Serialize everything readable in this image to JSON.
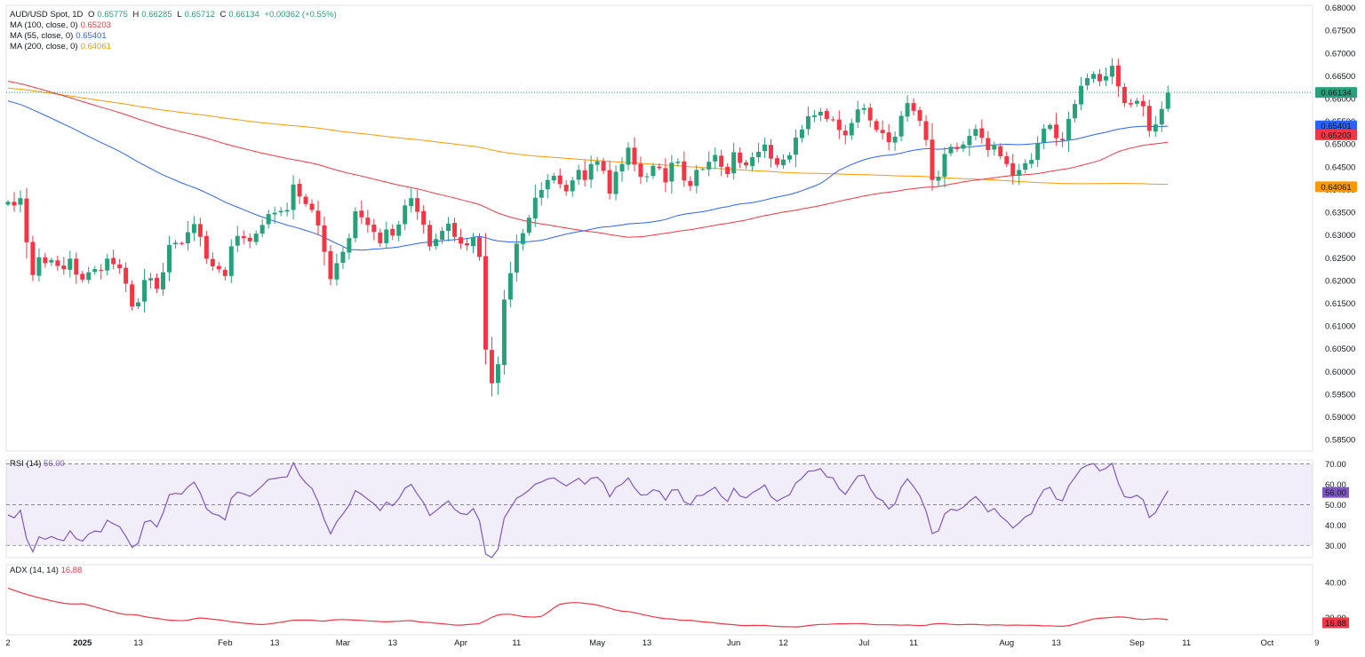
{
  "header": {
    "symbol": "AUD/USD Spot, 1D",
    "o_label": "O",
    "o_val": "0.65775",
    "h_label": "H",
    "h_val": "0.66285",
    "l_label": "L",
    "l_val": "0.65712",
    "c_label": "C",
    "c_val": "0.66134",
    "change": "+0.00362 (+0.55%)",
    "ma100_label": "MA (100, close, 0)",
    "ma100_val": "0.65203",
    "ma55_label": "MA (55, close, 0)",
    "ma55_val": "0.65401",
    "ma200_label": "MA (200, close, 0)",
    "ma200_val": "0.64061"
  },
  "rsi_panel": {
    "label": "RSI (14)",
    "value": "56.00"
  },
  "adx_panel": {
    "label": "ADX (14, 14)",
    "value": "16.88"
  },
  "colors": {
    "up": "#26a17a",
    "down": "#f23645",
    "ma55": "#2962ff",
    "ma100": "#f23645",
    "ma200": "#ff9800",
    "rsi": "#7e57c2",
    "adx": "#f23645",
    "value_green": "#26a17a"
  },
  "chart_data": [
    {
      "type": "candlestick",
      "title": "AUD/USD Spot, 1D",
      "x_ticks": [
        "2",
        "2025",
        "13",
        "Feb",
        "13",
        "Mar",
        "13",
        "Apr",
        "11",
        "May",
        "13",
        "Jun",
        "12",
        "Jul",
        "11",
        "Aug",
        "13",
        "Sep",
        "11",
        "Oct",
        "9"
      ],
      "y_ticks": [
        "0.68000",
        "0.67500",
        "0.67000",
        "0.66500",
        "0.66000",
        "0.65500",
        "0.65000",
        "0.64500",
        "0.64000",
        "0.63500",
        "0.63000",
        "0.62500",
        "0.62000",
        "0.61500",
        "0.61000",
        "0.60500",
        "0.60000",
        "0.59500",
        "0.59000",
        "0.58500"
      ],
      "ylim": [
        0.5825,
        0.6805
      ],
      "last_price": "0.66134",
      "ma_labels": {
        "ma55": "0.65401",
        "ma100": "0.65203",
        "ma200": "0.64061"
      },
      "closes": [
        0.6373,
        0.6365,
        0.6381,
        0.6284,
        0.6212,
        0.6251,
        0.6238,
        0.6245,
        0.6232,
        0.6225,
        0.6248,
        0.6213,
        0.6202,
        0.6218,
        0.6225,
        0.6222,
        0.6248,
        0.6236,
        0.6227,
        0.6193,
        0.6143,
        0.6152,
        0.6201,
        0.6205,
        0.6182,
        0.6218,
        0.6278,
        0.6283,
        0.6281,
        0.6306,
        0.6324,
        0.6296,
        0.6248,
        0.6231,
        0.6225,
        0.621,
        0.6275,
        0.6298,
        0.6293,
        0.6286,
        0.6303,
        0.6322,
        0.6346,
        0.6349,
        0.6353,
        0.6355,
        0.6411,
        0.6385,
        0.6368,
        0.6355,
        0.6321,
        0.6263,
        0.6203,
        0.6238,
        0.6263,
        0.6293,
        0.6352,
        0.6339,
        0.6322,
        0.6307,
        0.6282,
        0.6312,
        0.6299,
        0.6323,
        0.6365,
        0.6381,
        0.6351,
        0.6323,
        0.6275,
        0.6291,
        0.6309,
        0.6325,
        0.6296,
        0.6281,
        0.6277,
        0.6295,
        0.6252,
        0.6048,
        0.5974,
        0.6016,
        0.6158,
        0.6216,
        0.6281,
        0.6304,
        0.6338,
        0.6382,
        0.6399,
        0.6421,
        0.643,
        0.6412,
        0.6396,
        0.642,
        0.6443,
        0.6421,
        0.6456,
        0.6462,
        0.6441,
        0.6391,
        0.6439,
        0.6456,
        0.6492,
        0.6455,
        0.6428,
        0.6429,
        0.6452,
        0.6447,
        0.6416,
        0.6459,
        0.6461,
        0.642,
        0.6408,
        0.6443,
        0.6445,
        0.6461,
        0.6476,
        0.645,
        0.6434,
        0.6482,
        0.6459,
        0.6453,
        0.6471,
        0.6483,
        0.6499,
        0.6468,
        0.6455,
        0.6466,
        0.6475,
        0.6514,
        0.6532,
        0.6561,
        0.6563,
        0.6571,
        0.6555,
        0.6553,
        0.6531,
        0.6519,
        0.6546,
        0.6576,
        0.6579,
        0.6552,
        0.6531,
        0.6524,
        0.6504,
        0.6516,
        0.6562,
        0.659,
        0.6573,
        0.6551,
        0.6509,
        0.6421,
        0.6428,
        0.6478,
        0.6494,
        0.6489,
        0.6499,
        0.6518,
        0.6533,
        0.6514,
        0.6487,
        0.6497,
        0.6473,
        0.6456,
        0.6431,
        0.6443,
        0.6458,
        0.6465,
        0.6502,
        0.6534,
        0.6542,
        0.6513,
        0.6508,
        0.6555,
        0.6588,
        0.6628,
        0.6645,
        0.6654,
        0.6638,
        0.6649,
        0.6672,
        0.6627,
        0.659,
        0.6587,
        0.6595,
        0.6583,
        0.6529,
        0.6543,
        0.6577,
        0.6613
      ]
    },
    {
      "type": "line",
      "title": "RSI (14)",
      "y_ticks": [
        "70.00",
        "60.00",
        "50.00",
        "40.00",
        "30.00"
      ],
      "ylim": [
        24,
        72
      ],
      "last_value": "56.00",
      "band": [
        30,
        70
      ],
      "midline": 50
    },
    {
      "type": "line",
      "title": "ADX (14, 14)",
      "y_ticks": [
        "40.00",
        "20.00"
      ],
      "ylim": [
        10,
        50
      ],
      "last_value": "16.88"
    }
  ]
}
